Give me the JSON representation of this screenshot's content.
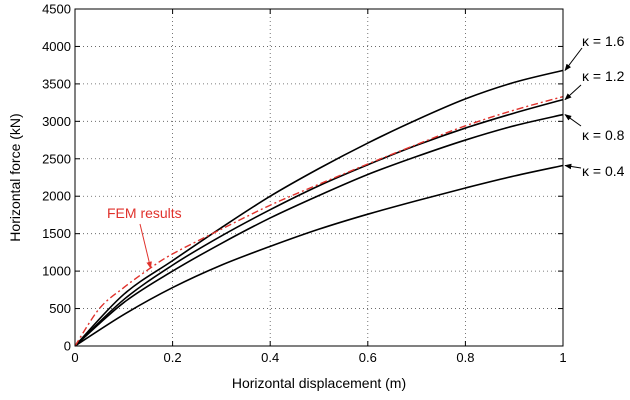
{
  "chart_data": {
    "type": "line",
    "title": "",
    "xlabel": "Horizontal displacement (m)",
    "ylabel": "Horizontal force (kN)",
    "xlim": [
      0,
      1
    ],
    "ylim": [
      0,
      4500
    ],
    "xticks": [
      0,
      0.2,
      0.4,
      0.6,
      0.8,
      1
    ],
    "xtick_labels": [
      "0",
      "0.2",
      "0.4",
      "0.6",
      "0.8",
      "1"
    ],
    "yticks": [
      0,
      500,
      1000,
      1500,
      2000,
      2500,
      3000,
      3500,
      4000,
      4500
    ],
    "ytick_labels": [
      "0",
      "500",
      "1000",
      "1500",
      "2000",
      "2500",
      "3000",
      "3500",
      "4000",
      "4500"
    ],
    "grid": true,
    "series": [
      {
        "name": "κ = 1.6",
        "color": "#000000",
        "style": "solid",
        "x": [
          0,
          0.1,
          0.2,
          0.3,
          0.4,
          0.5,
          0.6,
          0.7,
          0.8,
          0.9,
          1.0
        ],
        "y": [
          0,
          690,
          1140,
          1580,
          2000,
          2370,
          2710,
          3020,
          3300,
          3520,
          3680
        ]
      },
      {
        "name": "κ = 1.2",
        "color": "#000000",
        "style": "solid",
        "x": [
          0,
          0.1,
          0.2,
          0.3,
          0.4,
          0.5,
          0.6,
          0.7,
          0.8,
          0.9,
          1.0
        ],
        "y": [
          0,
          620,
          1080,
          1470,
          1820,
          2140,
          2420,
          2680,
          2910,
          3110,
          3290
        ]
      },
      {
        "name": "κ = 0.8",
        "color": "#000000",
        "style": "solid",
        "x": [
          0,
          0.1,
          0.2,
          0.3,
          0.4,
          0.5,
          0.6,
          0.7,
          0.8,
          0.9,
          1.0
        ],
        "y": [
          0,
          580,
          1000,
          1370,
          1710,
          2010,
          2290,
          2530,
          2750,
          2940,
          3090
        ]
      },
      {
        "name": "κ = 0.4",
        "color": "#000000",
        "style": "solid",
        "x": [
          0,
          0.1,
          0.2,
          0.3,
          0.4,
          0.5,
          0.6,
          0.7,
          0.8,
          0.9,
          1.0
        ],
        "y": [
          0,
          420,
          780,
          1080,
          1330,
          1560,
          1760,
          1940,
          2110,
          2270,
          2410
        ]
      },
      {
        "name": "FEM results",
        "color": "#e0322c",
        "style": "dashdot",
        "x": [
          0,
          0.05,
          0.1,
          0.15,
          0.2,
          0.3,
          0.4,
          0.5,
          0.6,
          0.7,
          0.8,
          0.9,
          1.0
        ],
        "y": [
          0,
          500,
          780,
          1020,
          1230,
          1560,
          1880,
          2160,
          2430,
          2690,
          2940,
          3150,
          3330
        ]
      }
    ],
    "annotations": [
      {
        "text": "κ = 1.6",
        "series": "κ = 1.6",
        "color": "#000000"
      },
      {
        "text": "κ = 1.2",
        "series": "κ = 1.2",
        "color": "#000000"
      },
      {
        "text": "κ = 0.8",
        "series": "κ = 0.8",
        "color": "#000000"
      },
      {
        "text": "κ = 0.4",
        "series": "κ = 0.4",
        "color": "#000000"
      },
      {
        "text": "FEM results",
        "series": "FEM results",
        "color": "#e0322c"
      }
    ]
  }
}
